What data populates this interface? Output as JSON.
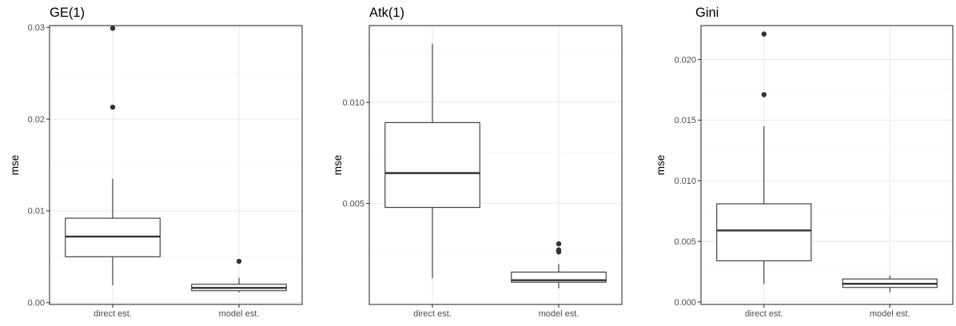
{
  "chart_data": [
    {
      "type": "box",
      "title": "GE(1)",
      "xlabel": "",
      "ylabel": "mse",
      "categories": [
        "direct est.",
        "model est."
      ],
      "ylim": [
        -0.0002,
        0.0302
      ],
      "yticks": [
        0.0,
        0.01,
        0.02,
        0.03
      ],
      "ytick_labels": [
        "0.00",
        "0.01",
        "0.02",
        "0.03"
      ],
      "grid": true,
      "boxes": [
        {
          "category": "direct est.",
          "whisker_low": 0.0019,
          "q1": 0.005,
          "median": 0.0072,
          "q3": 0.0092,
          "whisker_high": 0.0135,
          "outliers": [
            0.0213,
            0.0299
          ]
        },
        {
          "category": "model est.",
          "whisker_low": 0.0011,
          "q1": 0.0013,
          "median": 0.0016,
          "q3": 0.002,
          "whisker_high": 0.0027,
          "outliers": [
            0.0045
          ]
        }
      ]
    },
    {
      "type": "box",
      "title": "Atk(1)",
      "xlabel": "",
      "ylabel": "mse",
      "categories": [
        "direct est.",
        "model est."
      ],
      "ylim": [
        0.0,
        0.0138
      ],
      "yticks": [
        0.005,
        0.01
      ],
      "ytick_labels": [
        "0.005",
        "0.010"
      ],
      "grid": true,
      "boxes": [
        {
          "category": "direct est.",
          "whisker_low": 0.0013,
          "q1": 0.0048,
          "median": 0.0065,
          "q3": 0.009,
          "whisker_high": 0.0129,
          "outliers": []
        },
        {
          "category": "model est.",
          "whisker_low": 0.0008,
          "q1": 0.0011,
          "median": 0.0012,
          "q3": 0.0016,
          "whisker_high": 0.002,
          "outliers": [
            0.0026,
            0.0027,
            0.003
          ]
        }
      ]
    },
    {
      "type": "box",
      "title": "Gini",
      "xlabel": "",
      "ylabel": "mse",
      "categories": [
        "direct est.",
        "model est."
      ],
      "ylim": [
        -0.0002,
        0.0228
      ],
      "yticks": [
        0.0,
        0.005,
        0.01,
        0.015,
        0.02
      ],
      "ytick_labels": [
        "0.000",
        "0.005",
        "0.010",
        "0.015",
        "0.020"
      ],
      "grid": true,
      "boxes": [
        {
          "category": "direct est.",
          "whisker_low": 0.0015,
          "q1": 0.0034,
          "median": 0.0059,
          "q3": 0.0081,
          "whisker_high": 0.0145,
          "outliers": [
            0.0171,
            0.0221
          ]
        },
        {
          "category": "model est.",
          "whisker_low": 0.0008,
          "q1": 0.0012,
          "median": 0.0015,
          "q3": 0.0019,
          "whisker_high": 0.0022,
          "outliers": []
        }
      ]
    }
  ],
  "colors": {
    "panel_border": "#333333",
    "grid_major": "#ebebeb",
    "grid_minor": "#f5f5f5",
    "box_stroke": "#333333",
    "box_fill": "#ffffff",
    "outlier": "#333333",
    "axis_text": "#4d4d4d",
    "title_text": "#000000"
  }
}
